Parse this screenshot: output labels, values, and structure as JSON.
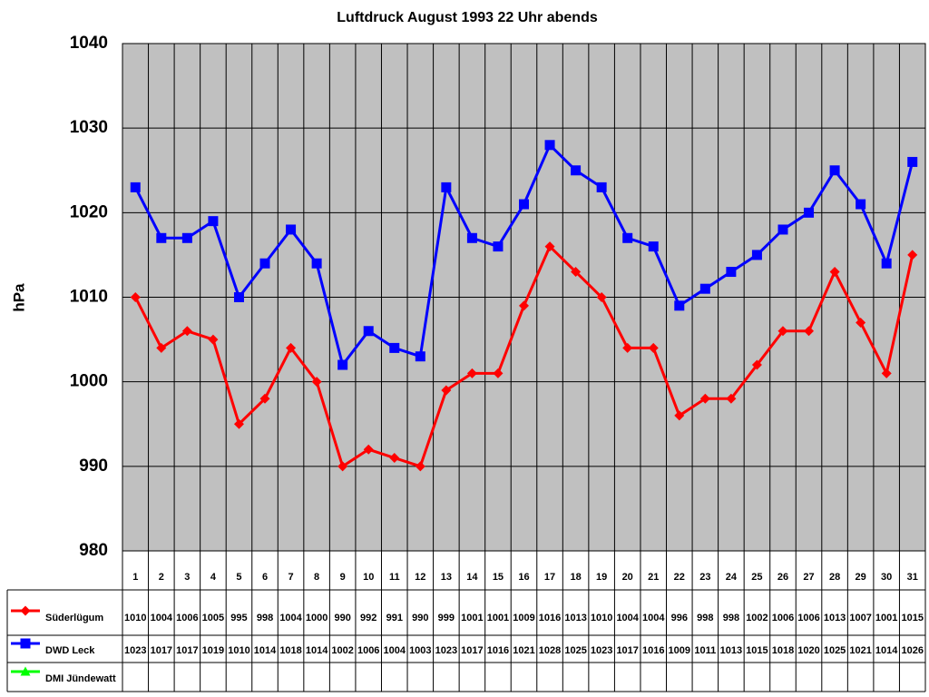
{
  "chart_data": {
    "type": "line",
    "title": "Luftdruck August 1993 22 Uhr abends",
    "y_label": "hPa",
    "categories": [
      1,
      2,
      3,
      4,
      5,
      6,
      7,
      8,
      9,
      10,
      11,
      12,
      13,
      14,
      15,
      16,
      17,
      18,
      19,
      20,
      21,
      22,
      23,
      24,
      25,
      26,
      27,
      28,
      29,
      30,
      31
    ],
    "series": [
      {
        "name": "Süderlügum",
        "color": "#ff0000",
        "marker": "diamond",
        "values": [
          1010,
          1004,
          1006,
          1005,
          995,
          998,
          1004,
          1000,
          990,
          992,
          991,
          990,
          999,
          1001,
          1001,
          1009,
          1016,
          1013,
          1010,
          1004,
          1004,
          996,
          998,
          998,
          1002,
          1006,
          1006,
          1013,
          1007,
          1001,
          1015
        ]
      },
      {
        "name": "DWD Leck",
        "color": "#0000ff",
        "marker": "square",
        "values": [
          1023,
          1017,
          1017,
          1019,
          1010,
          1014,
          1018,
          1014,
          1002,
          1006,
          1004,
          1003,
          1023,
          1017,
          1016,
          1021,
          1028,
          1025,
          1023,
          1017,
          1016,
          1009,
          1011,
          1013,
          1015,
          1018,
          1020,
          1025,
          1021,
          1014,
          1026
        ]
      },
      {
        "name": "DMI Jündewatt",
        "color": "#00ff00",
        "marker": "triangle",
        "values": [
          null,
          null,
          null,
          null,
          null,
          null,
          null,
          null,
          null,
          null,
          null,
          null,
          null,
          null,
          null,
          null,
          null,
          null,
          null,
          null,
          null,
          null,
          null,
          null,
          null,
          null,
          null,
          null,
          null,
          null,
          null
        ]
      }
    ],
    "ylim": [
      980,
      1040
    ],
    "yticks": [
      980,
      990,
      1000,
      1010,
      1020,
      1030,
      1040
    ],
    "grid": true,
    "plot_background": "#c0c0c0"
  }
}
